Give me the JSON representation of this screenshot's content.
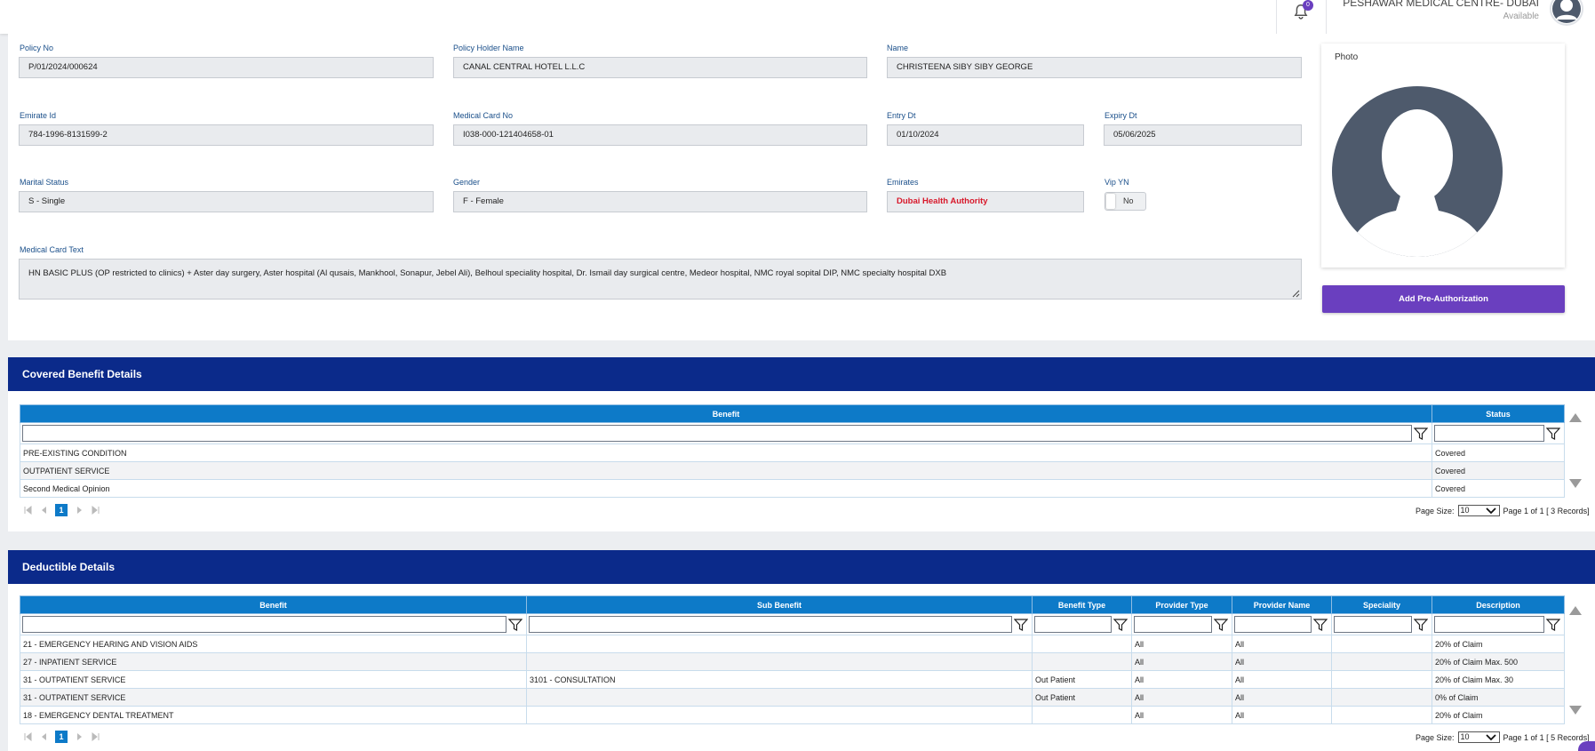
{
  "header": {
    "notification_count": "0",
    "clinic_name": "PESHAWAR MEDICAL CENTRE- DUBAI",
    "status": "Available"
  },
  "policy": {
    "policy_no_label": "Policy No",
    "policy_no": "P/01/2024/000624",
    "holder_label": "Policy Holder Name",
    "holder": "CANAL CENTRAL HOTEL L.L.C",
    "name_label": "Name",
    "name": "CHRISTEENA SIBY SIBY GEORGE",
    "emirate_id_label": "Emirate Id",
    "emirate_id": "784-1996-8131599-2",
    "card_no_label": "Medical Card No",
    "card_no": "I038-000-121404658-01",
    "entry_label": "Entry Dt",
    "entry": "01/10/2024",
    "expiry_label": "Expiry Dt",
    "expiry": "05/06/2025",
    "marital_label": "Marital Status",
    "marital": "S - Single",
    "gender_label": "Gender",
    "gender": "F - Female",
    "emirates_label": "Emirates",
    "emirates": "Dubai Health Authority",
    "vip_label": "Vip YN",
    "vip": "No",
    "card_text_label": "Medical Card Text",
    "card_text": "HN BASIC PLUS (OP restricted to clinics) + Aster day surgery, Aster hospital (Al qusais, Mankhool, Sonapur, Jebel Ali), Belhoul speciality hospital, Dr. Ismail day surgical centre, Medeor hospital, NMC royal sopital DIP,  NMC specialty hospital DXB",
    "photo_label": "Photo",
    "add_preauth": "Add Pre-Authorization"
  },
  "covered": {
    "title": "Covered Benefit Details",
    "columns": [
      "Benefit",
      "Status"
    ],
    "rows": [
      [
        "PRE-EXISTING CONDITION",
        "Covered"
      ],
      [
        "OUTPATIENT SERVICE",
        "Covered"
      ],
      [
        "Second Medical Opinion",
        "Covered"
      ]
    ],
    "current_page": "1",
    "page_size_label": "Page Size:",
    "page_size": "10",
    "page_info": "Page 1 of 1 [ 3 Records]"
  },
  "deductible": {
    "title": "Deductible Details",
    "columns": [
      "Benefit",
      "Sub Benefit",
      "Benefit Type",
      "Provider Type",
      "Provider Name",
      "Speciality",
      "Description"
    ],
    "rows": [
      [
        "21 - EMERGENCY HEARING AND VISION AIDS",
        "",
        "",
        "All",
        "All",
        "",
        "20% of Claim"
      ],
      [
        "27 - INPATIENT SERVICE",
        "",
        "",
        "All",
        "All",
        "",
        "20% of Claim Max. 500"
      ],
      [
        "31 - OUTPATIENT SERVICE",
        "3101 - CONSULTATION",
        "Out Patient",
        "All",
        "All",
        "",
        "20% of Claim Max. 30"
      ],
      [
        "31 - OUTPATIENT SERVICE",
        "",
        "Out Patient",
        "All",
        "All",
        "",
        "0% of Claim"
      ],
      [
        "18 - EMERGENCY DENTAL TREATMENT",
        "",
        "",
        "All",
        "All",
        "",
        "20% of Claim"
      ]
    ],
    "current_page": "1",
    "page_size_label": "Page Size:",
    "page_size": "10",
    "page_info": "Page 1 of 1 [ 5 Records]"
  }
}
